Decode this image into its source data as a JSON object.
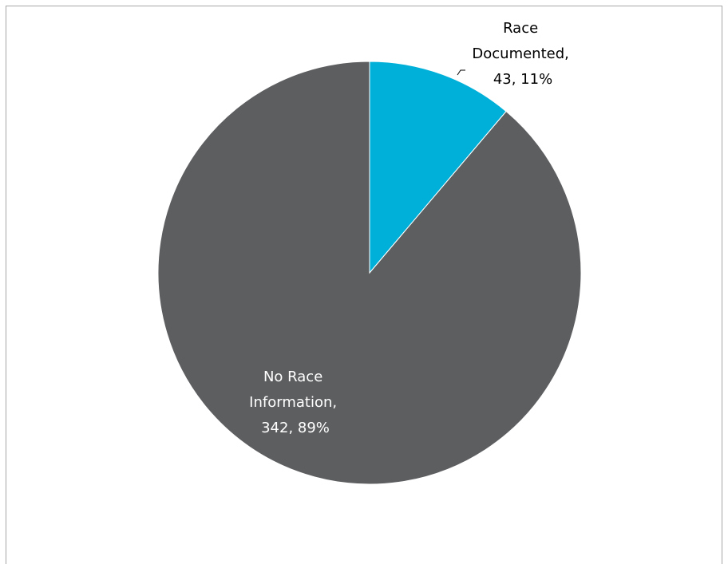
{
  "chart_data": {
    "type": "pie",
    "title": "",
    "slices": [
      {
        "category": "Race Documented",
        "value": 43,
        "percent": "11%",
        "color": "#00b0d8",
        "label_lines": [
          "Race",
          "Documented,",
          "43, 11%"
        ],
        "label_color": "#000000"
      },
      {
        "category": "No Race Information",
        "value": 342,
        "percent": "89%",
        "color": "#5d5e60",
        "label_lines": [
          "No Race",
          "Information,",
          "342, 89%"
        ],
        "label_color": "#ffffff"
      }
    ],
    "legend": "none"
  }
}
